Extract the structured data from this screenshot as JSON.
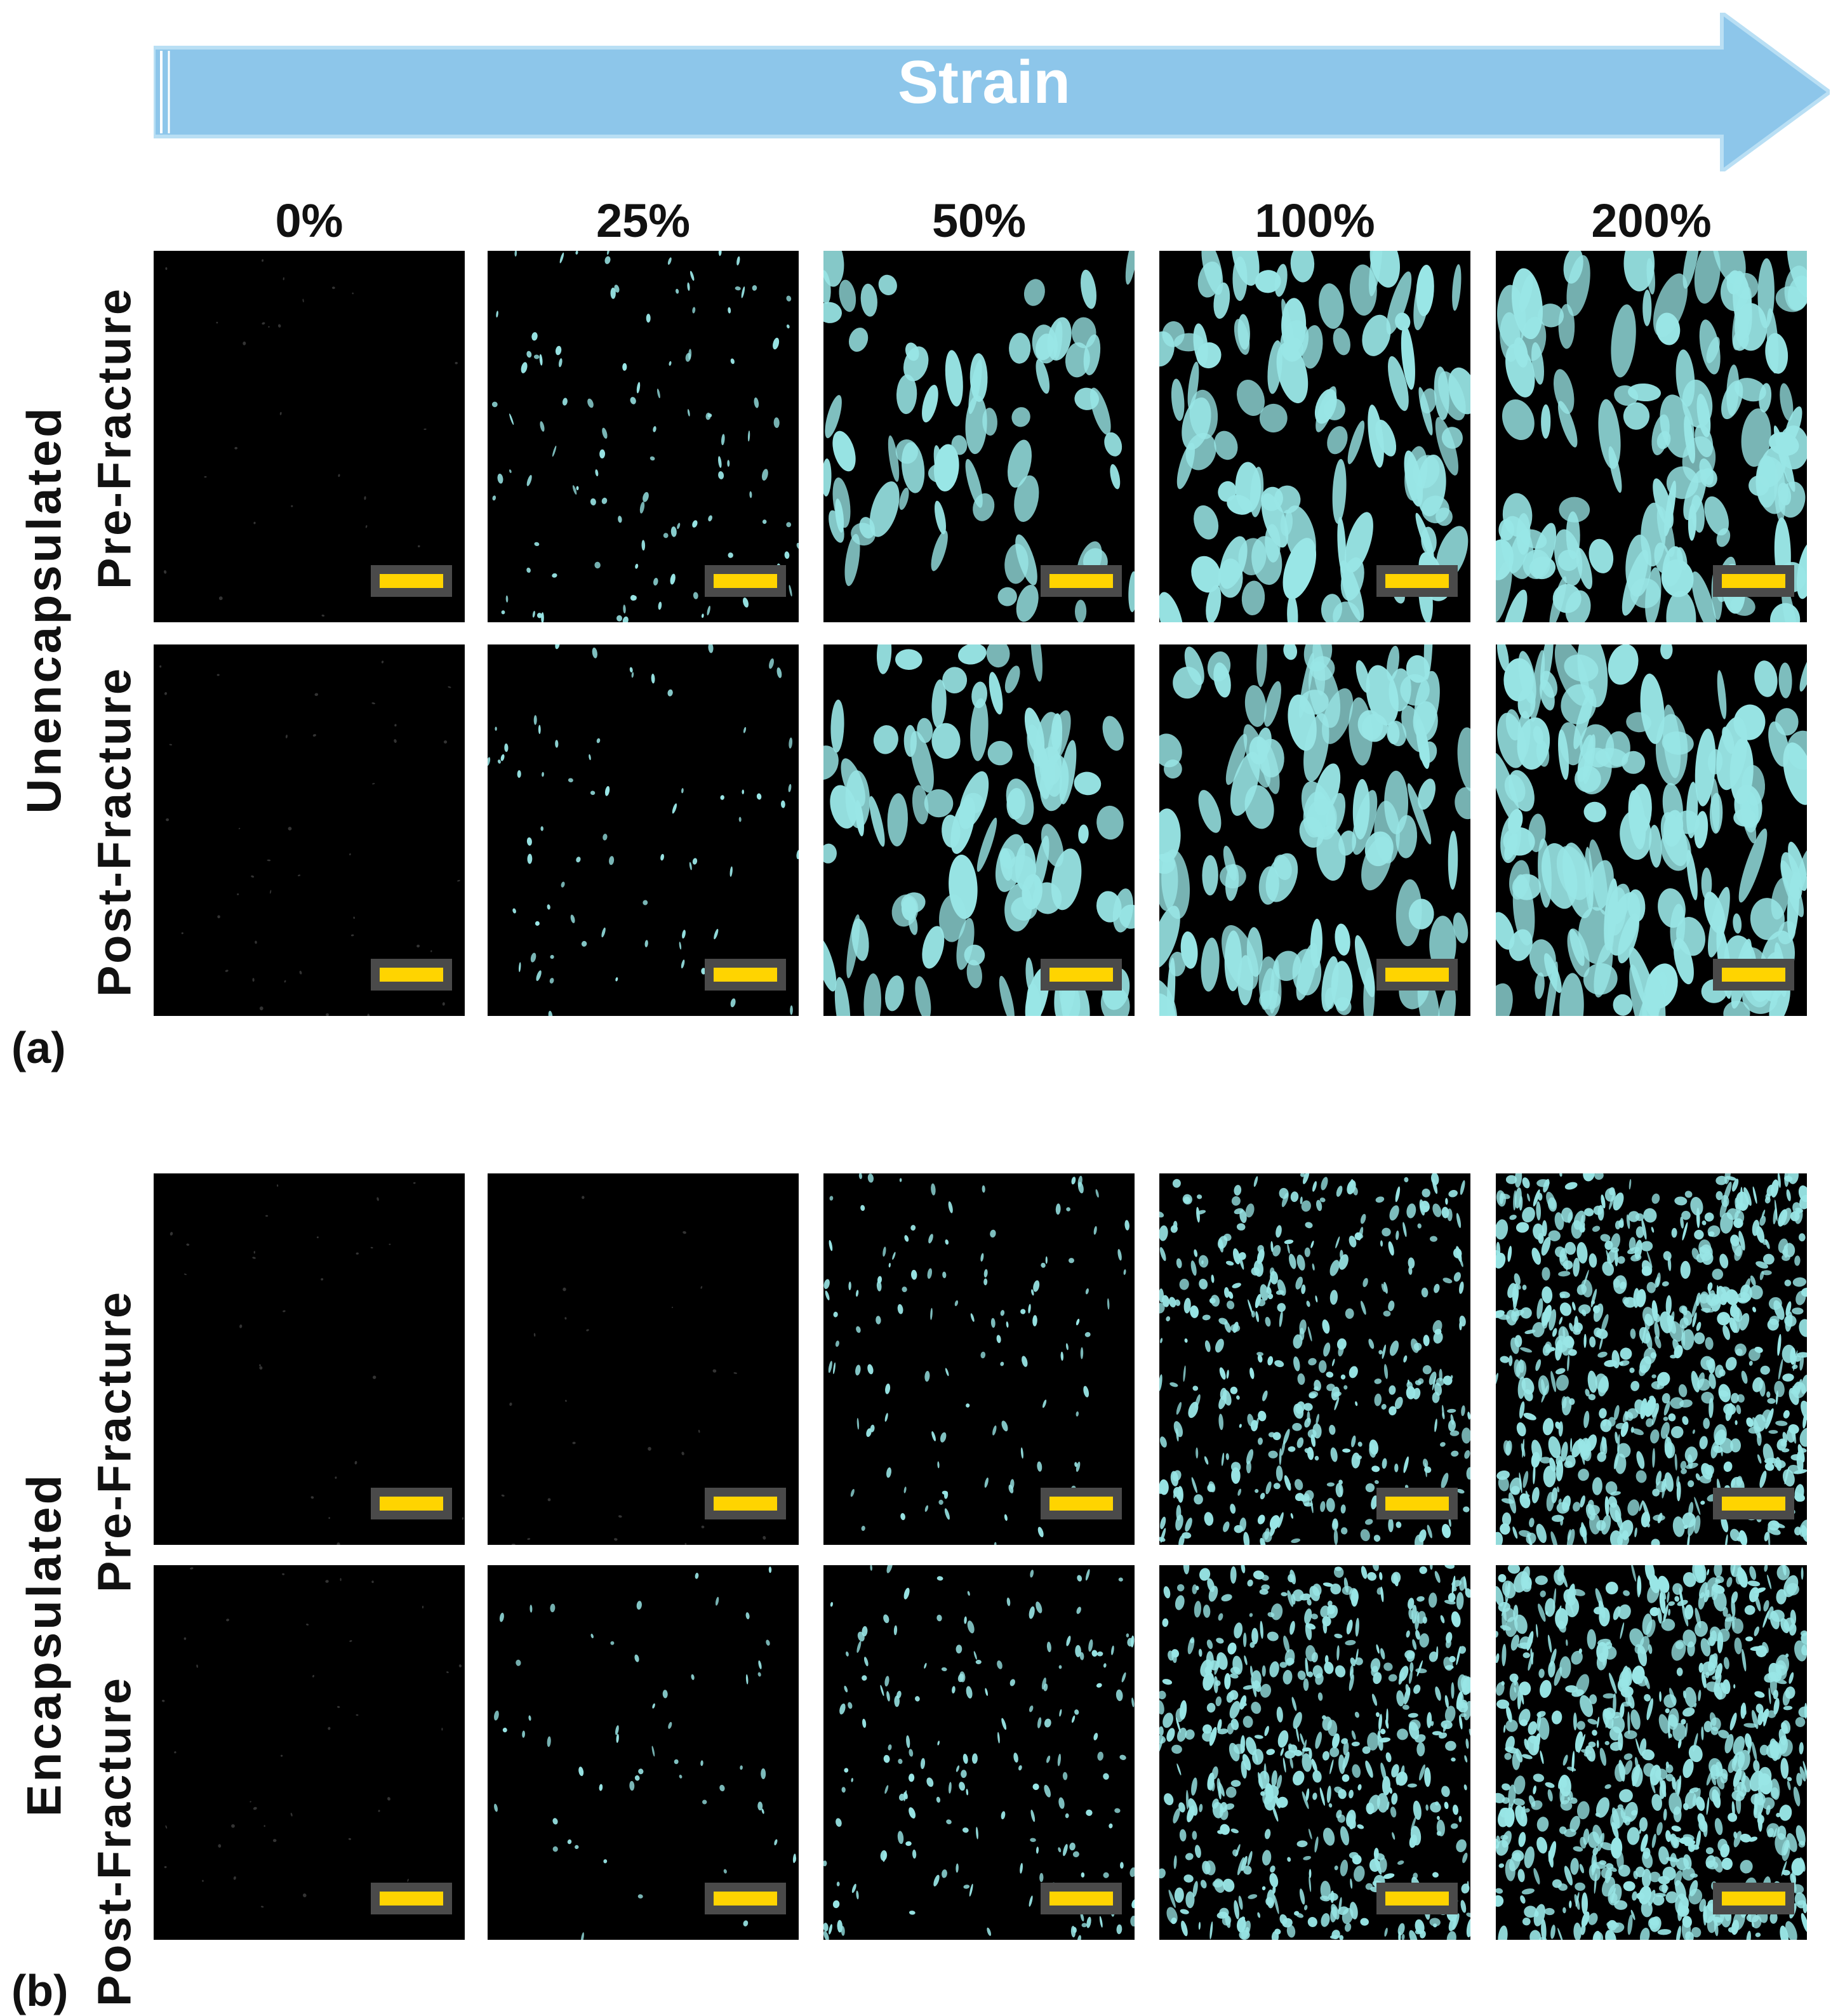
{
  "header": {
    "strain_label": "Strain"
  },
  "columns": [
    "0%",
    "25%",
    "50%",
    "100%",
    "200%"
  ],
  "rows": {
    "pre": "Pre-Fracture",
    "post": "Post-Fracture"
  },
  "groups": {
    "a": "Unencapsulated",
    "b": "Encapsulated"
  },
  "parts": {
    "a": "(a)",
    "b": "(b)"
  },
  "colors": {
    "arrow": "#8dc6ea",
    "crack": "#99e6e6",
    "scalebar": "#ffd400",
    "background": "#000000"
  },
  "panel_coverage": {
    "unencapsulated_pre": [
      0.0,
      0.08,
      0.25,
      0.38,
      0.48
    ],
    "unencapsulated_post": [
      0.01,
      0.05,
      0.35,
      0.42,
      0.55
    ],
    "encapsulated_pre": [
      0.0,
      0.0,
      0.08,
      0.28,
      0.48
    ],
    "encapsulated_post": [
      0.01,
      0.04,
      0.12,
      0.38,
      0.5
    ]
  }
}
